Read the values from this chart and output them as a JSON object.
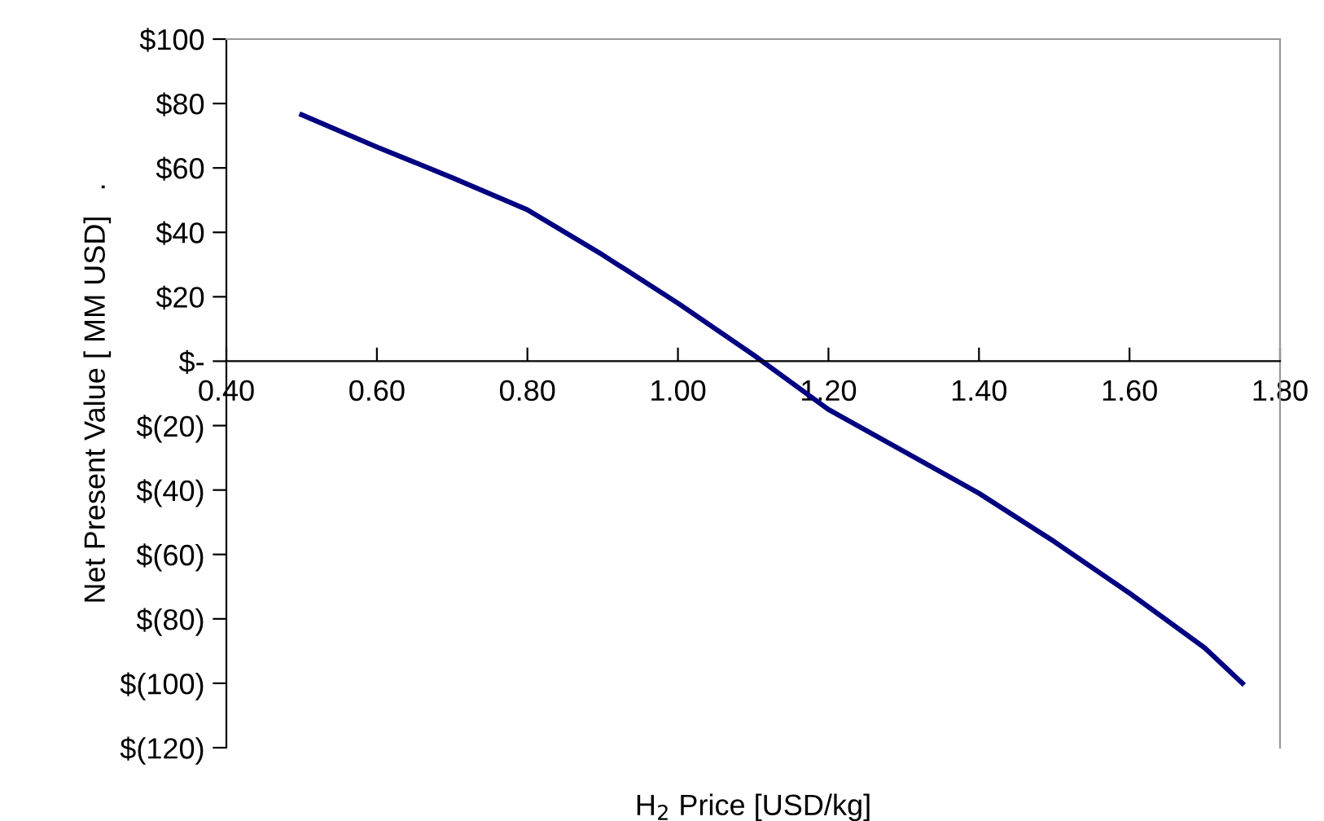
{
  "chart_data": {
    "type": "line",
    "xlabel": "H$_{2}$ Price [USD/kg]",
    "ylabel": "Net Present Value [ MM USD]   .",
    "x": [
      0.5,
      0.6,
      0.7,
      0.8,
      0.9,
      1.0,
      1.1,
      1.2,
      1.3,
      1.4,
      1.5,
      1.6,
      1.7,
      1.75
    ],
    "series": [
      {
        "color": "#000080",
        "values": [
          76.5,
          66.5,
          57,
          47,
          33,
          18,
          2,
          -15,
          -28,
          -41,
          -56,
          -72,
          -89,
          -100
        ]
      }
    ],
    "xlim": [
      0.4,
      1.8
    ],
    "xticks": [
      {
        "value": 0.4,
        "label": "0.40"
      },
      {
        "value": 0.6,
        "label": "0.60"
      },
      {
        "value": 0.8,
        "label": "0.80"
      },
      {
        "value": 1.0,
        "label": "1.00"
      },
      {
        "value": 1.2,
        "label": "1.20"
      },
      {
        "value": 1.4,
        "label": "1.40"
      },
      {
        "value": 1.6,
        "label": "1.60"
      },
      {
        "value": 1.8,
        "label": "1.80"
      }
    ],
    "ylim": [
      -120,
      100
    ],
    "yticks": [
      {
        "value": 100,
        "label": "$100"
      },
      {
        "value": 80,
        "label": "$80"
      },
      {
        "value": 60,
        "label": "$60"
      },
      {
        "value": 40,
        "label": "$40"
      },
      {
        "value": 20,
        "label": "$20"
      },
      {
        "value": 0,
        "label": "$-"
      },
      {
        "value": -20,
        "label": "$(20)"
      },
      {
        "value": -40,
        "label": "$(40)"
      },
      {
        "value": -60,
        "label": "$(60)"
      },
      {
        "value": -80,
        "label": "$(80)"
      },
      {
        "value": -100,
        "label": "$(100)"
      },
      {
        "value": -120,
        "label": "$(120)"
      }
    ],
    "grid": false,
    "marker": "none",
    "line_style": "solid"
  }
}
